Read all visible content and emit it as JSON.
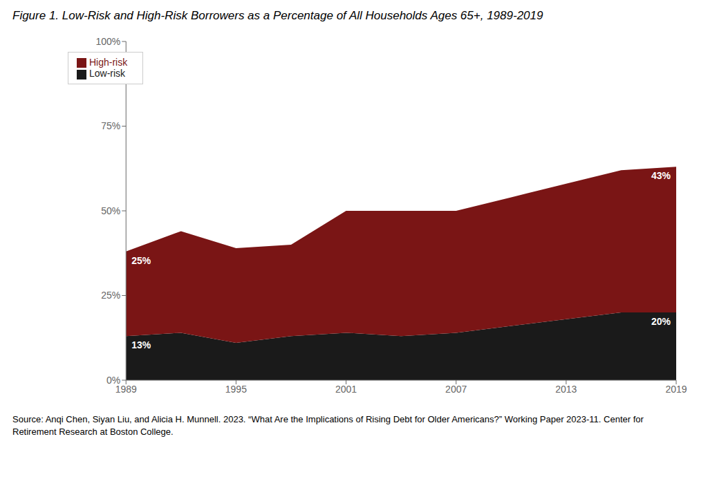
{
  "chart_data": {
    "type": "area",
    "title": "Figure 1. Low-Risk and High-Risk Borrowers as a Percentage of All Households Ages 65+, 1989-2019",
    "annotations": [
      "Source: Anqi Chen, Siyan Liu, and Alicia H. Munnell. 2023. “What Are the Implications of Rising Debt for Older Americans?” Working Paper 2023-11. Center for Retirement Research at Boston College."
    ],
    "x": [
      1989,
      1992,
      1995,
      1998,
      2001,
      2004,
      2007,
      2010,
      2013,
      2016,
      2019
    ],
    "series": [
      {
        "name": "Low-risk",
        "color": "#1a1a1a",
        "values": [
          13,
          14,
          11,
          13,
          14,
          13,
          14,
          16,
          18,
          20,
          20
        ],
        "value_labels": [
          "13%",
          null,
          null,
          null,
          null,
          null,
          null,
          null,
          null,
          null,
          "20%"
        ]
      },
      {
        "name": "High-risk",
        "color": "#7a1515",
        "values": [
          25,
          30,
          28,
          27,
          36,
          37,
          36,
          38,
          40,
          42,
          43
        ],
        "value_labels": [
          "25%",
          null,
          null,
          null,
          null,
          null,
          null,
          null,
          null,
          null,
          "43%"
        ]
      }
    ],
    "stacked": true,
    "data_labels": true,
    "xlim": [
      1989,
      2019
    ],
    "xticks": [
      1989,
      1995,
      2001,
      2007,
      2013,
      2019
    ],
    "ylim": [
      0,
      100
    ],
    "yticks": [
      {
        "value": 0,
        "label": "0%"
      },
      {
        "value": 25,
        "label": "25%"
      },
      {
        "value": 50,
        "label": "50%"
      },
      {
        "value": 75,
        "label": "75%"
      },
      {
        "value": 100,
        "label": "100%"
      }
    ],
    "legend": "upper left",
    "grid": false
  }
}
